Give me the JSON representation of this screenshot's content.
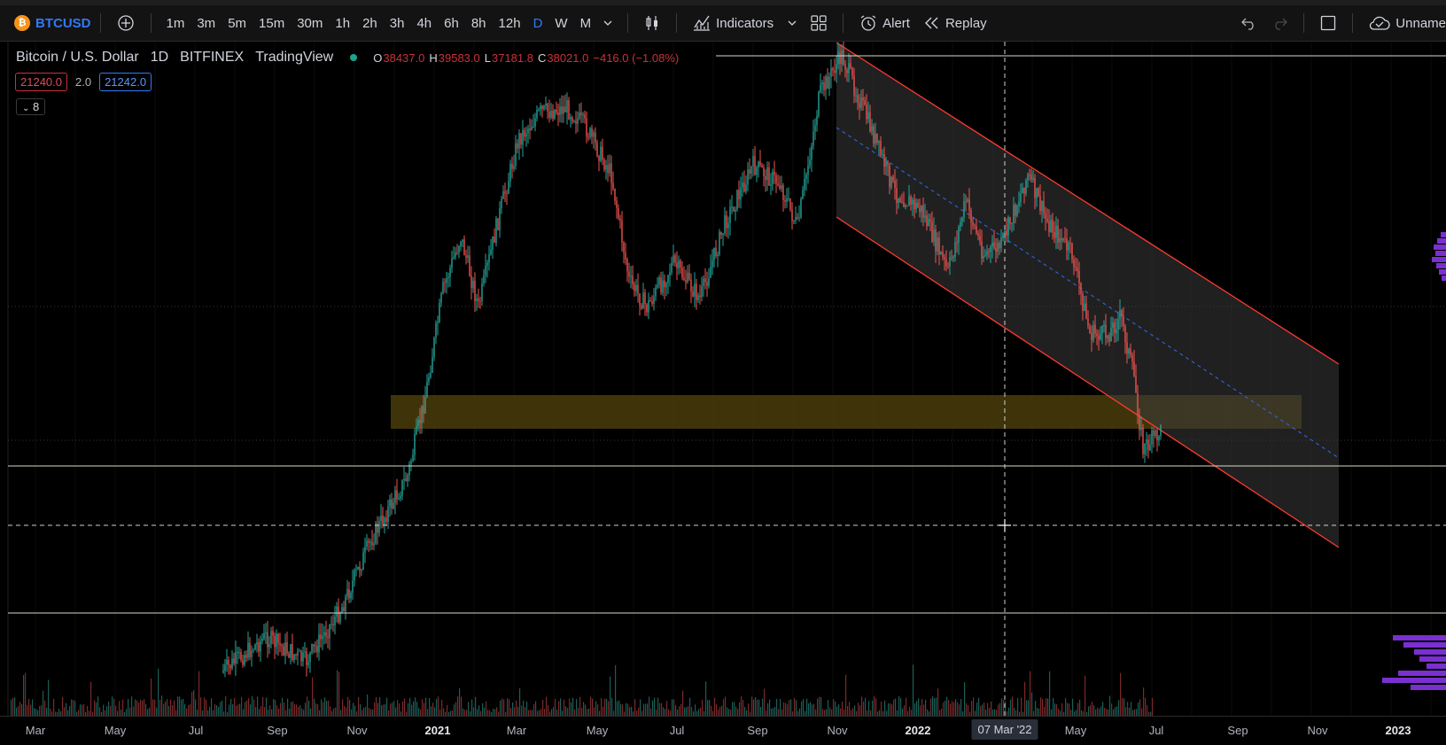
{
  "toolbar": {
    "symbol": "BTCUSD",
    "intervals": [
      "1m",
      "3m",
      "5m",
      "15m",
      "30m",
      "1h",
      "2h",
      "3h",
      "4h",
      "6h",
      "8h",
      "12h",
      "D",
      "W",
      "M"
    ],
    "active_interval": "D",
    "indicators_label": "Indicators",
    "alert_label": "Alert",
    "replay_label": "Replay",
    "layout_name": "Unname"
  },
  "legend": {
    "symbol_name": "Bitcoin / U.S. Dollar",
    "interval": "1D",
    "exchange": "BITFINEX",
    "source": "TradingView",
    "ohlc": {
      "o_key": "O",
      "o": "38437.0",
      "h_key": "H",
      "h": "39583.0",
      "l_key": "L",
      "l": "37181.8",
      "c_key": "C",
      "c": "38021.0",
      "change": "−416.0 (−1.08%)"
    }
  },
  "price_boxes": {
    "bid": "21240.0",
    "spread": "2.0",
    "ask": "21242.0"
  },
  "indicators_collapse": {
    "count": "8"
  },
  "xaxis": {
    "ticks": [
      {
        "label": "Mar"
      },
      {
        "label": "May"
      },
      {
        "label": "Jul"
      },
      {
        "label": "Sep"
      },
      {
        "label": "Nov"
      },
      {
        "label": "2021",
        "year": true
      },
      {
        "label": "Mar"
      },
      {
        "label": "May"
      },
      {
        "label": "Jul"
      },
      {
        "label": "Sep"
      },
      {
        "label": "Nov"
      },
      {
        "label": "2022",
        "year": true
      },
      {
        "label": "May"
      },
      {
        "label": "Jul"
      },
      {
        "label": "Sep"
      },
      {
        "label": "Nov"
      },
      {
        "label": "2023",
        "year": true
      }
    ],
    "crosshair_label": "07 Mar '22"
  },
  "colors": {
    "up": "#26a69a",
    "down": "#ef5350",
    "channel_edge": "#ff3b30",
    "zone": "#6b5a14",
    "volume_profile": "#7a2fd0"
  }
}
